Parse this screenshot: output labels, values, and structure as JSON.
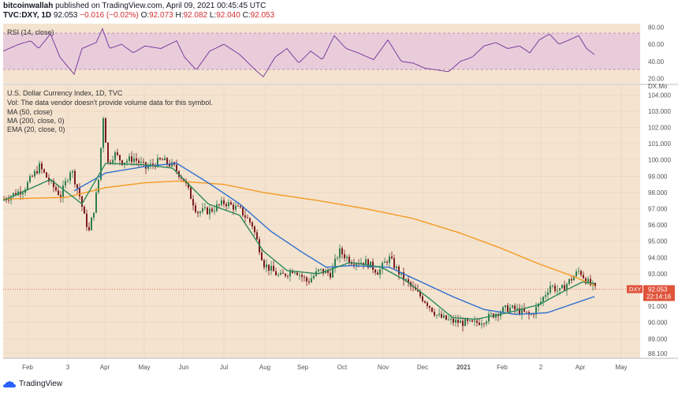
{
  "header": {
    "author": "bitcoinwallah",
    "published_text": "published on TradingView.com, April 09, 2021 00:45:45 UTC",
    "symbol": "TVC:DXY, 1D",
    "last": "92.053",
    "change": "−0.016 (−0.02%)",
    "open_label": "O:",
    "open": "92.073",
    "high_label": "H:",
    "high": "92.082",
    "low_label": "L:",
    "low": "92.040",
    "close_label": "C:",
    "close": "92.053"
  },
  "rsi_panel": {
    "label": "RSI (14, close)",
    "y_ticks": [
      "80.00",
      "60.00",
      "40.00",
      "20.00"
    ]
  },
  "legend": {
    "title": "U.S. Dollar Currency Index, 1D, TVC",
    "vol_note": "Vol: The data vendor doesn't provide volume data for this symbol.",
    "ma50": "MA (50, close)",
    "ma200": "MA (200, close, 0)",
    "ema20": "EMA (20, close, 0)"
  },
  "price_tag": {
    "symbol": "DXY",
    "price": "92.053",
    "countdown": "22:14:16"
  },
  "top_axis_label": "DX.Mo",
  "brand": "TradingView",
  "colors": {
    "background": "#f4e3cf",
    "rsi_band": "#e9ccda",
    "rsi_line": "#7b3fa0",
    "candle_up": "#2e7d4f",
    "candle_down": "#7a1d1d",
    "ma50": "#2f6fd0",
    "ma200": "#f49a22",
    "ema20": "#2a8a5c",
    "price_tag": "#e0533b"
  },
  "chart_data": {
    "type": "candlestick",
    "x_tick_labels": [
      "Feb",
      "3",
      "Apr",
      "May",
      "Jun",
      "Jul",
      "Aug",
      "Sep",
      "Oct",
      "Nov",
      "Dec",
      "2021",
      "Feb",
      "2",
      "Apr",
      "May"
    ],
    "y_tick_labels": [
      "104.000",
      "103.000",
      "102.000",
      "101.000",
      "100.000",
      "99.000",
      "98.000",
      "97.000",
      "96.000",
      "95.000",
      "94.000",
      "93.000",
      "91.000",
      "90.000",
      "89.000",
      "88.100"
    ],
    "ylim": [
      87.8,
      104.6
    ],
    "last_price": 92.053,
    "price_anchors": [
      [
        0,
        97.6
      ],
      [
        25,
        98.2
      ],
      [
        45,
        99.6
      ],
      [
        60,
        98.5
      ],
      [
        72,
        97.8
      ],
      [
        85,
        99.5
      ],
      [
        95,
        98.0
      ],
      [
        102,
        96.5
      ],
      [
        108,
        95.6
      ],
      [
        115,
        97.2
      ],
      [
        120,
        98.8
      ],
      [
        126,
        102.7
      ],
      [
        132,
        99.8
      ],
      [
        140,
        100.4
      ],
      [
        150,
        99.9
      ],
      [
        165,
        100.1
      ],
      [
        180,
        99.5
      ],
      [
        200,
        100.0
      ],
      [
        215,
        99.6
      ],
      [
        228,
        98.8
      ],
      [
        245,
        96.8
      ],
      [
        262,
        96.9
      ],
      [
        280,
        97.4
      ],
      [
        300,
        96.9
      ],
      [
        315,
        96.0
      ],
      [
        330,
        93.6
      ],
      [
        350,
        92.8
      ],
      [
        368,
        93.3
      ],
      [
        385,
        92.5
      ],
      [
        400,
        93.2
      ],
      [
        415,
        93.0
      ],
      [
        425,
        94.4
      ],
      [
        440,
        93.8
      ],
      [
        460,
        93.7
      ],
      [
        475,
        93.1
      ],
      [
        488,
        94.0
      ],
      [
        505,
        92.8
      ],
      [
        520,
        92.0
      ],
      [
        535,
        91.3
      ],
      [
        550,
        90.4
      ],
      [
        565,
        90.1
      ],
      [
        580,
        90.0
      ],
      [
        595,
        89.9
      ],
      [
        610,
        90.2
      ],
      [
        625,
        90.6
      ],
      [
        640,
        90.9
      ],
      [
        655,
        90.7
      ],
      [
        668,
        90.4
      ],
      [
        680,
        91.2
      ],
      [
        693,
        92.3
      ],
      [
        705,
        91.9
      ],
      [
        718,
        92.6
      ],
      [
        730,
        93.2
      ],
      [
        740,
        92.5
      ],
      [
        750,
        92.05
      ]
    ],
    "ema20_anchors": [
      [
        0,
        97.5
      ],
      [
        60,
        98.8
      ],
      [
        100,
        97.3
      ],
      [
        130,
        99.8
      ],
      [
        180,
        99.7
      ],
      [
        215,
        99.5
      ],
      [
        260,
        97.3
      ],
      [
        300,
        96.6
      ],
      [
        330,
        94.4
      ],
      [
        360,
        93.2
      ],
      [
        400,
        93.0
      ],
      [
        440,
        93.7
      ],
      [
        480,
        93.4
      ],
      [
        510,
        92.6
      ],
      [
        540,
        91.5
      ],
      [
        570,
        90.3
      ],
      [
        600,
        90.2
      ],
      [
        640,
        90.6
      ],
      [
        680,
        91.1
      ],
      [
        710,
        91.9
      ],
      [
        735,
        92.5
      ],
      [
        750,
        92.4
      ]
    ],
    "ma50_anchors": [
      [
        90,
        98.1
      ],
      [
        130,
        99.2
      ],
      [
        180,
        99.6
      ],
      [
        220,
        99.8
      ],
      [
        260,
        98.6
      ],
      [
        300,
        97.3
      ],
      [
        340,
        95.6
      ],
      [
        380,
        94.3
      ],
      [
        410,
        93.4
      ],
      [
        440,
        93.5
      ],
      [
        490,
        93.4
      ],
      [
        530,
        92.5
      ],
      [
        570,
        91.6
      ],
      [
        610,
        90.8
      ],
      [
        650,
        90.5
      ],
      [
        690,
        90.6
      ],
      [
        720,
        91.1
      ],
      [
        750,
        91.6
      ]
    ],
    "ma200_anchors": [
      [
        0,
        97.6
      ],
      [
        80,
        97.7
      ],
      [
        130,
        98.3
      ],
      [
        180,
        98.6
      ],
      [
        220,
        98.7
      ],
      [
        280,
        98.5
      ],
      [
        330,
        98.0
      ],
      [
        400,
        97.5
      ],
      [
        460,
        97.0
      ],
      [
        520,
        96.4
      ],
      [
        580,
        95.5
      ],
      [
        630,
        94.6
      ],
      [
        680,
        93.6
      ],
      [
        720,
        92.9
      ],
      [
        750,
        92.3
      ]
    ],
    "rsi_anchors": [
      [
        0,
        52
      ],
      [
        20,
        60
      ],
      [
        35,
        64
      ],
      [
        45,
        55
      ],
      [
        60,
        72
      ],
      [
        72,
        45
      ],
      [
        90,
        25
      ],
      [
        100,
        55
      ],
      [
        118,
        62
      ],
      [
        126,
        78
      ],
      [
        135,
        55
      ],
      [
        150,
        60
      ],
      [
        165,
        50
      ],
      [
        180,
        58
      ],
      [
        200,
        55
      ],
      [
        220,
        64
      ],
      [
        230,
        45
      ],
      [
        245,
        30
      ],
      [
        262,
        52
      ],
      [
        280,
        60
      ],
      [
        300,
        48
      ],
      [
        320,
        30
      ],
      [
        330,
        22
      ],
      [
        345,
        45
      ],
      [
        360,
        55
      ],
      [
        375,
        38
      ],
      [
        390,
        52
      ],
      [
        405,
        42
      ],
      [
        420,
        70
      ],
      [
        435,
        55
      ],
      [
        450,
        50
      ],
      [
        470,
        42
      ],
      [
        488,
        65
      ],
      [
        505,
        40
      ],
      [
        520,
        38
      ],
      [
        535,
        32
      ],
      [
        550,
        30
      ],
      [
        565,
        28
      ],
      [
        580,
        40
      ],
      [
        595,
        45
      ],
      [
        610,
        58
      ],
      [
        625,
        62
      ],
      [
        640,
        55
      ],
      [
        655,
        58
      ],
      [
        668,
        50
      ],
      [
        680,
        65
      ],
      [
        693,
        72
      ],
      [
        705,
        60
      ],
      [
        718,
        65
      ],
      [
        730,
        70
      ],
      [
        740,
        55
      ],
      [
        750,
        48
      ]
    ],
    "rsi_ylim": [
      14,
      84
    ]
  }
}
